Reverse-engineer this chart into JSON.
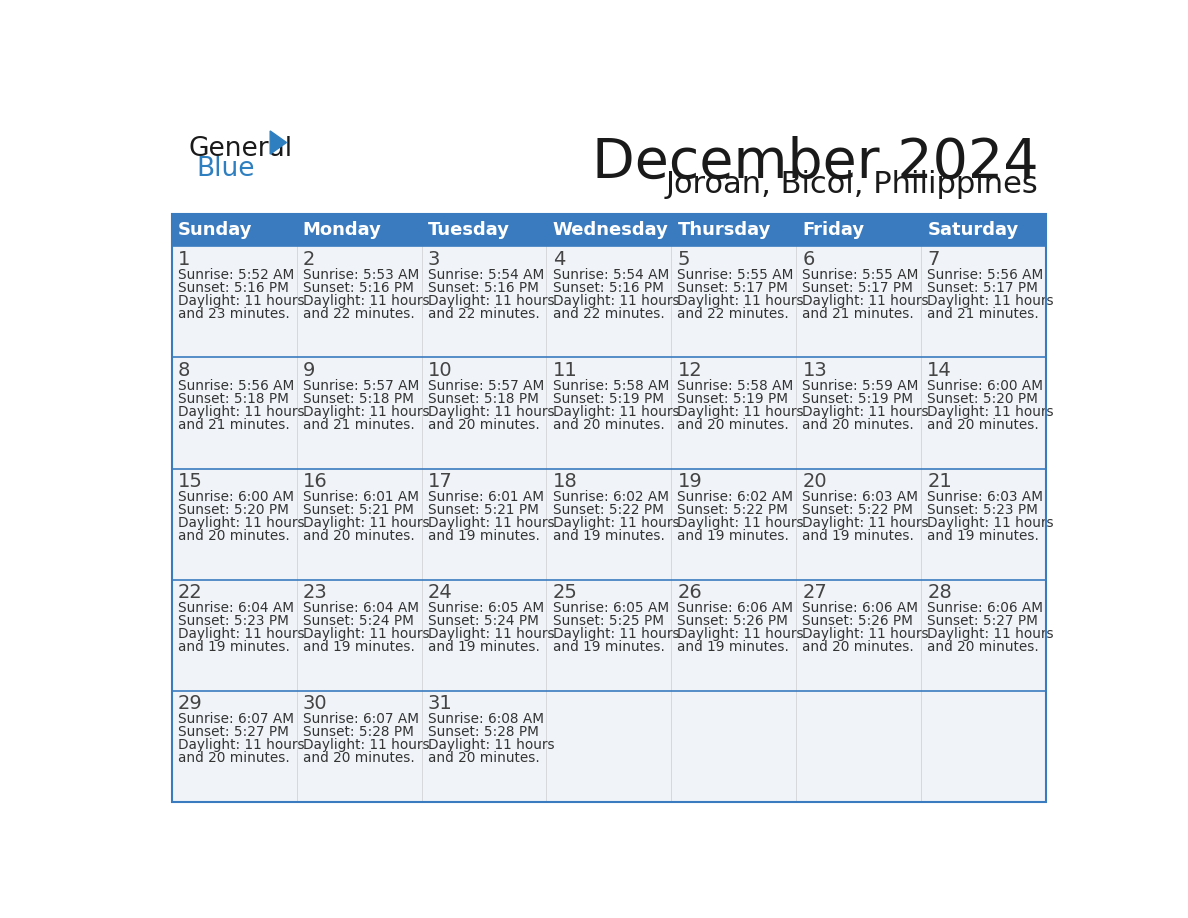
{
  "title": "December 2024",
  "subtitle": "Joroan, Bicol, Philippines",
  "days_of_week": [
    "Sunday",
    "Monday",
    "Tuesday",
    "Wednesday",
    "Thursday",
    "Friday",
    "Saturday"
  ],
  "header_bg": "#3a7bbf",
  "header_text": "#ffffff",
  "row_bg": "#f0f4f8",
  "border_color": "#3a7bbf",
  "day_num_color": "#444444",
  "text_color": "#333333",
  "title_color": "#1a1a1a",
  "logo_color1": "#1a1a1a",
  "logo_color2": "#2e7fc0",
  "logo_triangle_color": "#2e7fc0",
  "calendar_data": [
    [
      {
        "day": 1,
        "sunrise": "5:52 AM",
        "sunset": "5:16 PM",
        "daylight_suffix": "23 minutes."
      },
      {
        "day": 2,
        "sunrise": "5:53 AM",
        "sunset": "5:16 PM",
        "daylight_suffix": "22 minutes."
      },
      {
        "day": 3,
        "sunrise": "5:54 AM",
        "sunset": "5:16 PM",
        "daylight_suffix": "22 minutes."
      },
      {
        "day": 4,
        "sunrise": "5:54 AM",
        "sunset": "5:16 PM",
        "daylight_suffix": "22 minutes."
      },
      {
        "day": 5,
        "sunrise": "5:55 AM",
        "sunset": "5:17 PM",
        "daylight_suffix": "22 minutes."
      },
      {
        "day": 6,
        "sunrise": "5:55 AM",
        "sunset": "5:17 PM",
        "daylight_suffix": "21 minutes."
      },
      {
        "day": 7,
        "sunrise": "5:56 AM",
        "sunset": "5:17 PM",
        "daylight_suffix": "21 minutes."
      }
    ],
    [
      {
        "day": 8,
        "sunrise": "5:56 AM",
        "sunset": "5:18 PM",
        "daylight_suffix": "21 minutes."
      },
      {
        "day": 9,
        "sunrise": "5:57 AM",
        "sunset": "5:18 PM",
        "daylight_suffix": "21 minutes."
      },
      {
        "day": 10,
        "sunrise": "5:57 AM",
        "sunset": "5:18 PM",
        "daylight_suffix": "20 minutes."
      },
      {
        "day": 11,
        "sunrise": "5:58 AM",
        "sunset": "5:19 PM",
        "daylight_suffix": "20 minutes."
      },
      {
        "day": 12,
        "sunrise": "5:58 AM",
        "sunset": "5:19 PM",
        "daylight_suffix": "20 minutes."
      },
      {
        "day": 13,
        "sunrise": "5:59 AM",
        "sunset": "5:19 PM",
        "daylight_suffix": "20 minutes."
      },
      {
        "day": 14,
        "sunrise": "6:00 AM",
        "sunset": "5:20 PM",
        "daylight_suffix": "20 minutes."
      }
    ],
    [
      {
        "day": 15,
        "sunrise": "6:00 AM",
        "sunset": "5:20 PM",
        "daylight_suffix": "20 minutes."
      },
      {
        "day": 16,
        "sunrise": "6:01 AM",
        "sunset": "5:21 PM",
        "daylight_suffix": "20 minutes."
      },
      {
        "day": 17,
        "sunrise": "6:01 AM",
        "sunset": "5:21 PM",
        "daylight_suffix": "19 minutes."
      },
      {
        "day": 18,
        "sunrise": "6:02 AM",
        "sunset": "5:22 PM",
        "daylight_suffix": "19 minutes."
      },
      {
        "day": 19,
        "sunrise": "6:02 AM",
        "sunset": "5:22 PM",
        "daylight_suffix": "19 minutes."
      },
      {
        "day": 20,
        "sunrise": "6:03 AM",
        "sunset": "5:22 PM",
        "daylight_suffix": "19 minutes."
      },
      {
        "day": 21,
        "sunrise": "6:03 AM",
        "sunset": "5:23 PM",
        "daylight_suffix": "19 minutes."
      }
    ],
    [
      {
        "day": 22,
        "sunrise": "6:04 AM",
        "sunset": "5:23 PM",
        "daylight_suffix": "19 minutes."
      },
      {
        "day": 23,
        "sunrise": "6:04 AM",
        "sunset": "5:24 PM",
        "daylight_suffix": "19 minutes."
      },
      {
        "day": 24,
        "sunrise": "6:05 AM",
        "sunset": "5:24 PM",
        "daylight_suffix": "19 minutes."
      },
      {
        "day": 25,
        "sunrise": "6:05 AM",
        "sunset": "5:25 PM",
        "daylight_suffix": "19 minutes."
      },
      {
        "day": 26,
        "sunrise": "6:06 AM",
        "sunset": "5:26 PM",
        "daylight_suffix": "19 minutes."
      },
      {
        "day": 27,
        "sunrise": "6:06 AM",
        "sunset": "5:26 PM",
        "daylight_suffix": "20 minutes."
      },
      {
        "day": 28,
        "sunrise": "6:06 AM",
        "sunset": "5:27 PM",
        "daylight_suffix": "20 minutes."
      }
    ],
    [
      {
        "day": 29,
        "sunrise": "6:07 AM",
        "sunset": "5:27 PM",
        "daylight_suffix": "20 minutes."
      },
      {
        "day": 30,
        "sunrise": "6:07 AM",
        "sunset": "5:28 PM",
        "daylight_suffix": "20 minutes."
      },
      {
        "day": 31,
        "sunrise": "6:08 AM",
        "sunset": "5:28 PM",
        "daylight_suffix": "20 minutes."
      },
      null,
      null,
      null,
      null
    ]
  ]
}
